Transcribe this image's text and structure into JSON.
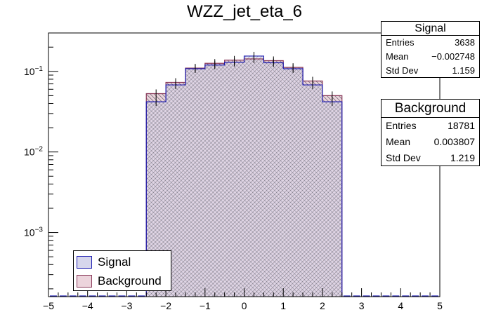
{
  "colors": {
    "signal_line": "#1c1cb0",
    "signal_fill": "#d6d6ec",
    "background_line": "#8a3a5a",
    "background_fill": "#ecd4dc",
    "hatch": "#5a5a66"
  },
  "chart_data": {
    "type": "bar",
    "title": "WZZ_jet_eta_6",
    "xlabel": "",
    "ylabel": "",
    "xlim": [
      -5,
      5
    ],
    "ylim": [
      0.00016,
      0.3
    ],
    "y_scale": "log",
    "x_ticks": [
      "−5",
      "−4",
      "−3",
      "−2",
      "−1",
      "0",
      "1",
      "2",
      "3",
      "4",
      "5"
    ],
    "y_ticks": [
      {
        "base": "10",
        "exp": "−1",
        "value": 0.1
      },
      {
        "base": "10",
        "exp": "−2",
        "value": 0.01
      },
      {
        "base": "10",
        "exp": "−3",
        "value": 0.001
      }
    ],
    "bin_edges": [
      -5.0,
      -4.75,
      -4.5,
      -4.25,
      -4.0,
      -3.75,
      -3.5,
      -3.25,
      -3.0,
      -2.75,
      -2.5,
      -2.25,
      -2.0,
      -1.75,
      -1.5,
      -1.25,
      -1.0,
      -0.75,
      -0.5,
      -0.25,
      0.0,
      0.25,
      0.5,
      0.75,
      1.0,
      1.25,
      1.5,
      1.75,
      2.0,
      2.25,
      2.5,
      2.75,
      3.0,
      3.25,
      3.5,
      3.75,
      4.0,
      4.25,
      4.5,
      4.75,
      5.0
    ],
    "visible_bin_edges": [
      -2.5,
      -2.0,
      -1.5,
      -1.0,
      -0.5,
      0.0,
      0.5,
      1.0,
      1.5,
      2.0,
      2.5
    ],
    "series": [
      {
        "name": "Signal",
        "values": [
          0.042,
          0.068,
          0.108,
          0.12,
          0.13,
          0.155,
          0.128,
          0.108,
          0.068,
          0.042
        ]
      },
      {
        "name": "Background",
        "values": [
          0.053,
          0.073,
          0.11,
          0.126,
          0.138,
          0.143,
          0.136,
          0.112,
          0.076,
          0.05
        ]
      }
    ],
    "legend": {
      "position": "bottom-left",
      "entries": [
        "Signal",
        "Background"
      ]
    },
    "stats": [
      {
        "title": "Signal",
        "rows": [
          {
            "label": "Entries",
            "value": "3638"
          },
          {
            "label": "Mean",
            "value": "−0.002748"
          },
          {
            "label": "Std Dev",
            "value": "1.159"
          }
        ]
      },
      {
        "title": "Background",
        "rows": [
          {
            "label": "Entries",
            "value": "18781"
          },
          {
            "label": "Mean",
            "value": "0.003807"
          },
          {
            "label": "Std Dev",
            "value": "1.219"
          }
        ]
      }
    ]
  }
}
